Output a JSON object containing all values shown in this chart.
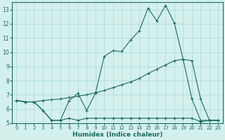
{
  "title": "",
  "xlabel": "Humidex (Indice chaleur)",
  "bg_color": "#d4f0ec",
  "grid_color": "#aad8d3",
  "line_color": "#1a6b60",
  "xlim": [
    -0.5,
    23.5
  ],
  "ylim": [
    5,
    13.5
  ],
  "yticks": [
    5,
    6,
    7,
    8,
    9,
    10,
    11,
    12,
    13
  ],
  "xticks": [
    0,
    1,
    2,
    3,
    4,
    5,
    6,
    7,
    8,
    9,
    10,
    11,
    12,
    13,
    14,
    15,
    16,
    17,
    18,
    19,
    20,
    21,
    22,
    23
  ],
  "line1_x": [
    0,
    1,
    2,
    3,
    4,
    5,
    6,
    7,
    8,
    9,
    10,
    11,
    12,
    13,
    14,
    15,
    16,
    17,
    18,
    19,
    20,
    21,
    22,
    23
  ],
  "line1_y": [
    6.6,
    6.5,
    6.5,
    5.9,
    5.2,
    5.2,
    5.35,
    5.2,
    5.35,
    5.35,
    5.35,
    5.35,
    5.35,
    5.35,
    5.35,
    5.35,
    5.35,
    5.35,
    5.35,
    5.35,
    5.35,
    5.1,
    5.2,
    5.2
  ],
  "line2_x": [
    0,
    1,
    2,
    3,
    4,
    5,
    6,
    7,
    8,
    9,
    10,
    11,
    12,
    13,
    14,
    15,
    16,
    17,
    18,
    19,
    20,
    21,
    22,
    23
  ],
  "line2_y": [
    6.6,
    6.5,
    6.5,
    6.6,
    6.65,
    6.7,
    6.8,
    6.9,
    7.0,
    7.15,
    7.3,
    7.5,
    7.7,
    7.9,
    8.15,
    8.5,
    8.8,
    9.1,
    9.4,
    9.5,
    9.4,
    6.7,
    5.2,
    5.2
  ],
  "line3_x": [
    0,
    1,
    2,
    3,
    4,
    5,
    6,
    7,
    8,
    9,
    10,
    11,
    12,
    13,
    14,
    15,
    16,
    17,
    18,
    19,
    20,
    21,
    22,
    23
  ],
  "line3_y": [
    6.6,
    6.5,
    6.5,
    5.9,
    5.2,
    5.2,
    6.6,
    7.1,
    5.9,
    7.1,
    9.7,
    10.1,
    10.05,
    10.85,
    11.5,
    13.1,
    12.2,
    13.3,
    12.05,
    9.5,
    6.7,
    5.2,
    5.2,
    5.2
  ]
}
